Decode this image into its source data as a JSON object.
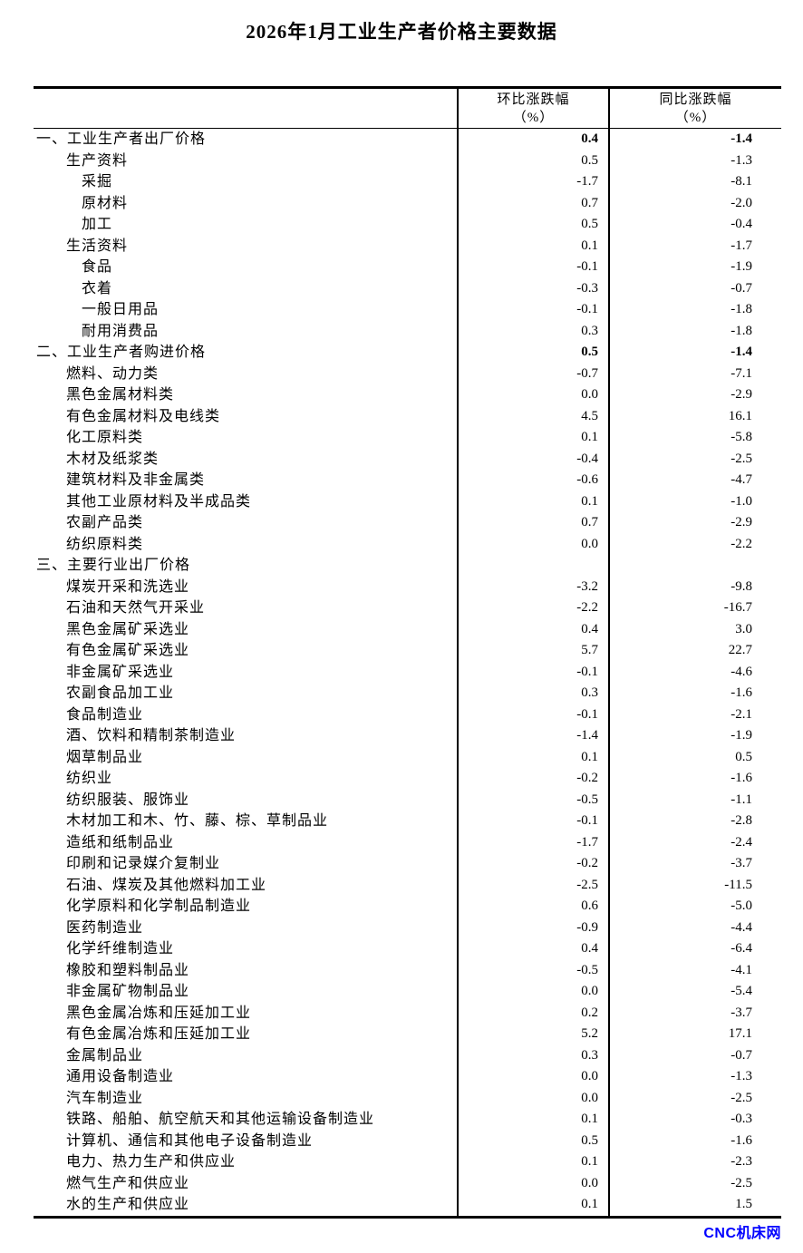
{
  "page": {
    "title": "2026年1月工业生产者价格主要数据",
    "watermark": "CNC机床网",
    "colors": {
      "background": "#ffffff",
      "text": "#000000",
      "watermark_blue": "#0000FF"
    }
  },
  "table": {
    "columns": [
      {
        "label": "",
        "sub": ""
      },
      {
        "label": "环比涨跌幅",
        "sub": "（%）"
      },
      {
        "label": "同比涨跌幅",
        "sub": "（%）"
      }
    ],
    "rows": [
      {
        "label": "一、工业生产者出厂价格",
        "indent": 1,
        "bold": true,
        "mom": "0.4",
        "yoy": "-1.4"
      },
      {
        "label": "生产资料",
        "indent": 2,
        "bold": false,
        "mom": "0.5",
        "yoy": "-1.3"
      },
      {
        "label": "采掘",
        "indent": 3,
        "bold": false,
        "mom": "-1.7",
        "yoy": "-8.1"
      },
      {
        "label": "原材料",
        "indent": 3,
        "bold": false,
        "mom": "0.7",
        "yoy": "-2.0"
      },
      {
        "label": "加工",
        "indent": 3,
        "bold": false,
        "mom": "0.5",
        "yoy": "-0.4"
      },
      {
        "label": "生活资料",
        "indent": 2,
        "bold": false,
        "mom": "0.1",
        "yoy": "-1.7"
      },
      {
        "label": "食品",
        "indent": 3,
        "bold": false,
        "mom": "-0.1",
        "yoy": "-1.9"
      },
      {
        "label": "衣着",
        "indent": 3,
        "bold": false,
        "mom": "-0.3",
        "yoy": "-0.7"
      },
      {
        "label": "一般日用品",
        "indent": 3,
        "bold": false,
        "mom": "-0.1",
        "yoy": "-1.8"
      },
      {
        "label": "耐用消费品",
        "indent": 3,
        "bold": false,
        "mom": "0.3",
        "yoy": "-1.8"
      },
      {
        "label": "二、工业生产者购进价格",
        "indent": 1,
        "bold": true,
        "mom": "0.5",
        "yoy": "-1.4"
      },
      {
        "label": "燃料、动力类",
        "indent": 2,
        "bold": false,
        "mom": "-0.7",
        "yoy": "-7.1"
      },
      {
        "label": "黑色金属材料类",
        "indent": 2,
        "bold": false,
        "mom": "0.0",
        "yoy": "-2.9"
      },
      {
        "label": "有色金属材料及电线类",
        "indent": 2,
        "bold": false,
        "mom": "4.5",
        "yoy": "16.1"
      },
      {
        "label": "化工原料类",
        "indent": 2,
        "bold": false,
        "mom": "0.1",
        "yoy": "-5.8"
      },
      {
        "label": "木材及纸浆类",
        "indent": 2,
        "bold": false,
        "mom": "-0.4",
        "yoy": "-2.5"
      },
      {
        "label": "建筑材料及非金属类",
        "indent": 2,
        "bold": false,
        "mom": "-0.6",
        "yoy": "-4.7"
      },
      {
        "label": "其他工业原材料及半成品类",
        "indent": 2,
        "bold": false,
        "mom": "0.1",
        "yoy": "-1.0"
      },
      {
        "label": "农副产品类",
        "indent": 2,
        "bold": false,
        "mom": "0.7",
        "yoy": "-2.9"
      },
      {
        "label": "纺织原料类",
        "indent": 2,
        "bold": false,
        "mom": "0.0",
        "yoy": "-2.2"
      },
      {
        "label": "三、主要行业出厂价格",
        "indent": 1,
        "bold": false,
        "mom": "",
        "yoy": ""
      },
      {
        "label": "煤炭开采和洗选业",
        "indent": 2,
        "bold": false,
        "mom": "-3.2",
        "yoy": "-9.8"
      },
      {
        "label": "石油和天然气开采业",
        "indent": 2,
        "bold": false,
        "mom": "-2.2",
        "yoy": "-16.7"
      },
      {
        "label": "黑色金属矿采选业",
        "indent": 2,
        "bold": false,
        "mom": "0.4",
        "yoy": "3.0"
      },
      {
        "label": "有色金属矿采选业",
        "indent": 2,
        "bold": false,
        "mom": "5.7",
        "yoy": "22.7"
      },
      {
        "label": "非金属矿采选业",
        "indent": 2,
        "bold": false,
        "mom": "-0.1",
        "yoy": "-4.6"
      },
      {
        "label": "农副食品加工业",
        "indent": 2,
        "bold": false,
        "mom": "0.3",
        "yoy": "-1.6"
      },
      {
        "label": "食品制造业",
        "indent": 2,
        "bold": false,
        "mom": "-0.1",
        "yoy": "-2.1"
      },
      {
        "label": "酒、饮料和精制茶制造业",
        "indent": 2,
        "bold": false,
        "mom": "-1.4",
        "yoy": "-1.9"
      },
      {
        "label": "烟草制品业",
        "indent": 2,
        "bold": false,
        "mom": "0.1",
        "yoy": "0.5"
      },
      {
        "label": "纺织业",
        "indent": 2,
        "bold": false,
        "mom": "-0.2",
        "yoy": "-1.6"
      },
      {
        "label": "纺织服装、服饰业",
        "indent": 2,
        "bold": false,
        "mom": "-0.5",
        "yoy": "-1.1"
      },
      {
        "label": "木材加工和木、竹、藤、棕、草制品业",
        "indent": 2,
        "bold": false,
        "mom": "-0.1",
        "yoy": "-2.8"
      },
      {
        "label": "造纸和纸制品业",
        "indent": 2,
        "bold": false,
        "mom": "-1.7",
        "yoy": "-2.4"
      },
      {
        "label": "印刷和记录媒介复制业",
        "indent": 2,
        "bold": false,
        "mom": "-0.2",
        "yoy": "-3.7"
      },
      {
        "label": "石油、煤炭及其他燃料加工业",
        "indent": 2,
        "bold": false,
        "mom": "-2.5",
        "yoy": "-11.5"
      },
      {
        "label": "化学原料和化学制品制造业",
        "indent": 2,
        "bold": false,
        "mom": "0.6",
        "yoy": "-5.0"
      },
      {
        "label": "医药制造业",
        "indent": 2,
        "bold": false,
        "mom": "-0.9",
        "yoy": "-4.4"
      },
      {
        "label": "化学纤维制造业",
        "indent": 2,
        "bold": false,
        "mom": "0.4",
        "yoy": "-6.4"
      },
      {
        "label": "橡胶和塑料制品业",
        "indent": 2,
        "bold": false,
        "mom": "-0.5",
        "yoy": "-4.1"
      },
      {
        "label": "非金属矿物制品业",
        "indent": 2,
        "bold": false,
        "mom": "0.0",
        "yoy": "-5.4"
      },
      {
        "label": "黑色金属冶炼和压延加工业",
        "indent": 2,
        "bold": false,
        "mom": "0.2",
        "yoy": "-3.7"
      },
      {
        "label": "有色金属冶炼和压延加工业",
        "indent": 2,
        "bold": false,
        "mom": "5.2",
        "yoy": "17.1"
      },
      {
        "label": "金属制品业",
        "indent": 2,
        "bold": false,
        "mom": "0.3",
        "yoy": "-0.7"
      },
      {
        "label": "通用设备制造业",
        "indent": 2,
        "bold": false,
        "mom": "0.0",
        "yoy": "-1.3"
      },
      {
        "label": "汽车制造业",
        "indent": 2,
        "bold": false,
        "mom": "0.0",
        "yoy": "-2.5"
      },
      {
        "label": "铁路、船舶、航空航天和其他运输设备制造业",
        "indent": 2,
        "bold": false,
        "mom": "0.1",
        "yoy": "-0.3"
      },
      {
        "label": "计算机、通信和其他电子设备制造业",
        "indent": 2,
        "bold": false,
        "mom": "0.5",
        "yoy": "-1.6"
      },
      {
        "label": "电力、热力生产和供应业",
        "indent": 2,
        "bold": false,
        "mom": "0.1",
        "yoy": "-2.3"
      },
      {
        "label": "燃气生产和供应业",
        "indent": 2,
        "bold": false,
        "mom": "0.0",
        "yoy": "-2.5"
      },
      {
        "label": "水的生产和供应业",
        "indent": 2,
        "bold": false,
        "mom": "0.1",
        "yoy": "1.5"
      }
    ]
  }
}
